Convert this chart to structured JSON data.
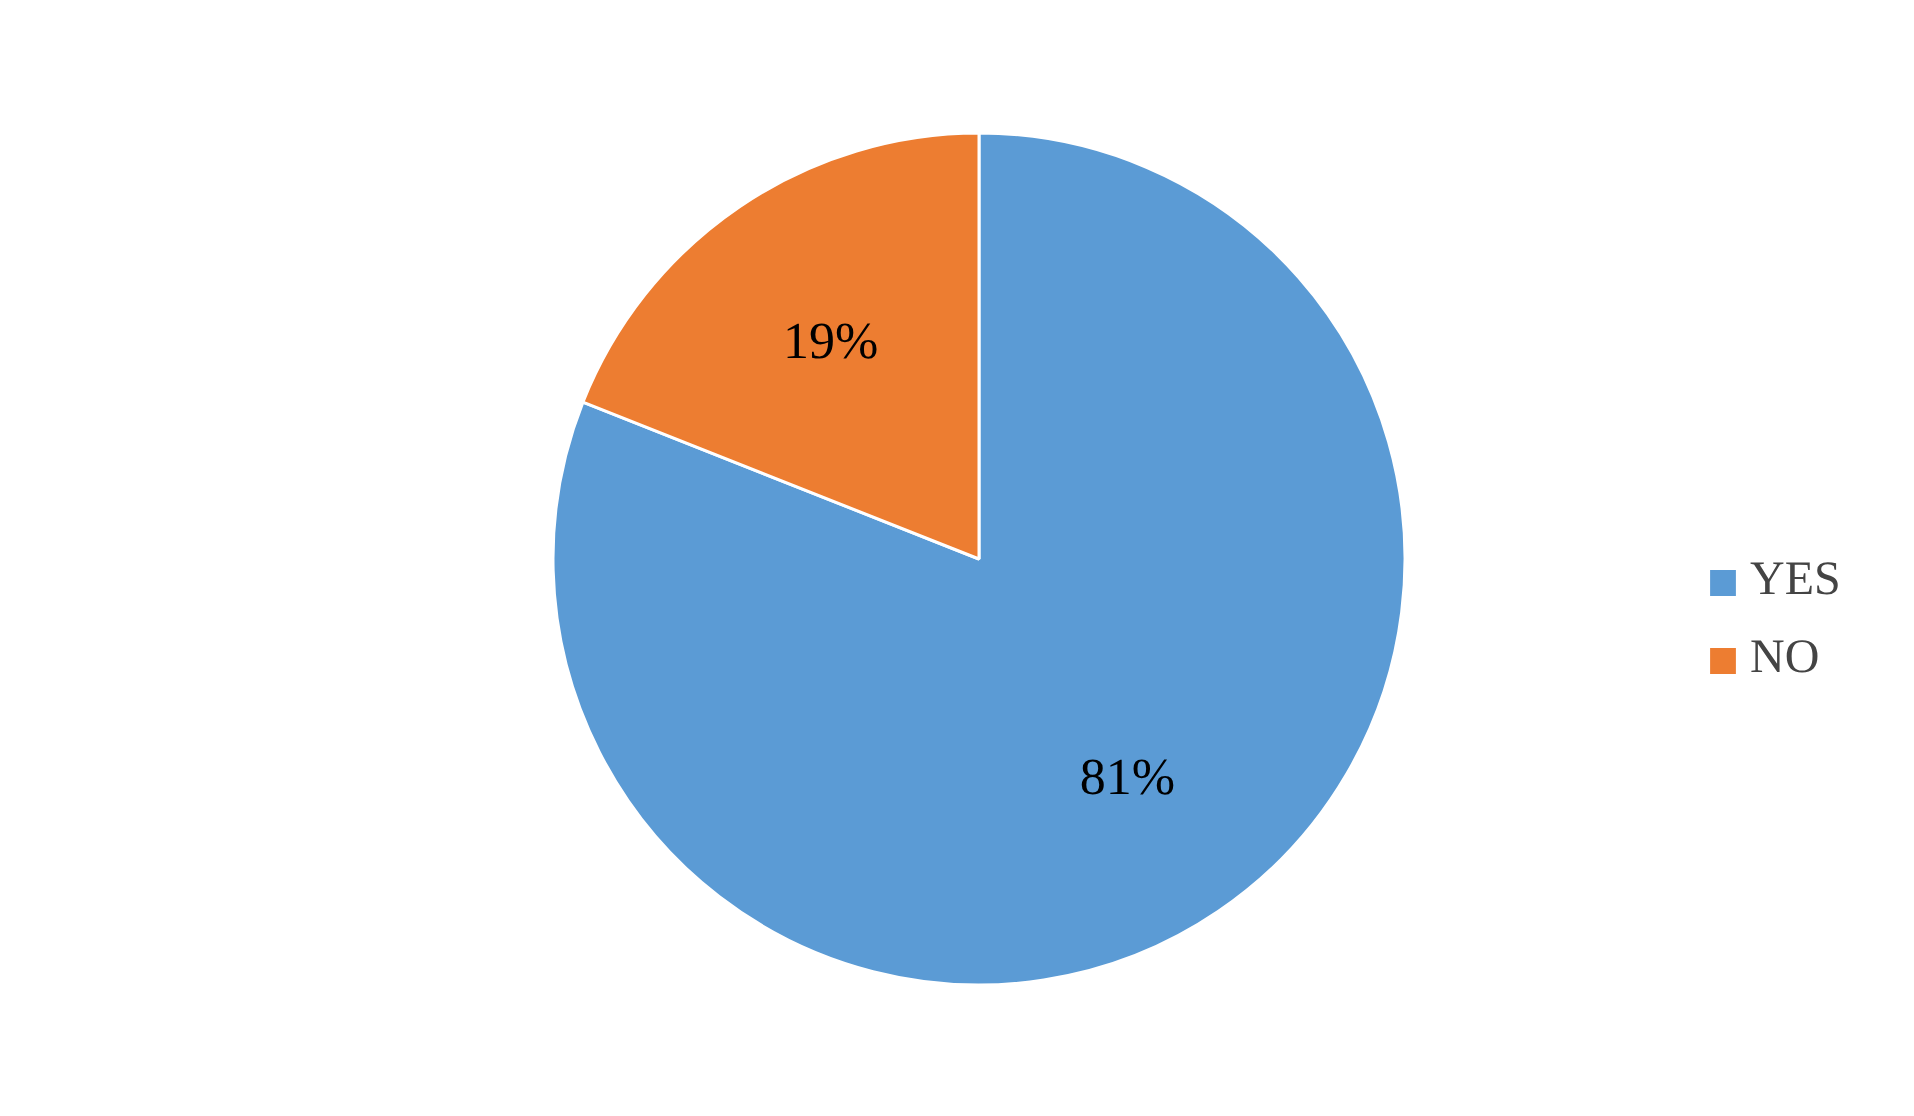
{
  "chart_data": {
    "type": "pie",
    "categories": [
      "YES",
      "NO"
    ],
    "values": [
      81,
      19
    ],
    "colors": [
      "#5b9bd5",
      "#ed7d31"
    ],
    "value_labels": [
      "81%",
      "19%"
    ],
    "legend": "right"
  }
}
